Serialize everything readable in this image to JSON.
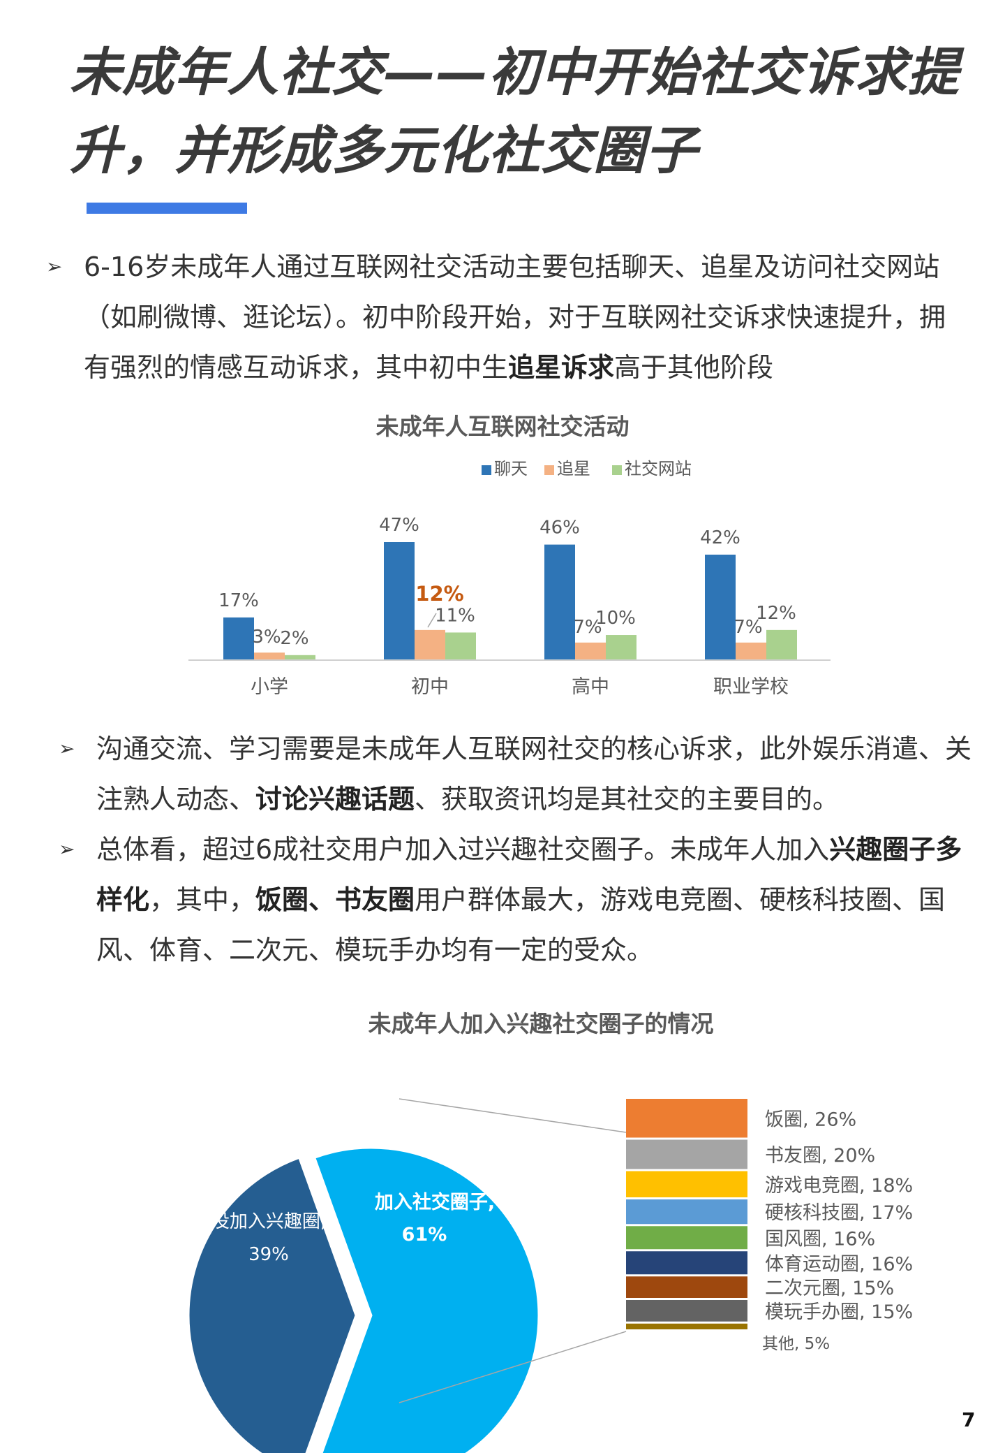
{
  "page": {
    "title_line1": "未成年人社交——初中开始社交诉求提",
    "title_line2": "升，并形成多元化社交圈子",
    "page_number": "7",
    "accent_color": "#3e7ae4"
  },
  "bullets": [
    {
      "marker": "➢",
      "text_before": "6-16岁未成年人通过互联网社交活动主要包括聊天、追星及访问社交网站（如刷微博、逛论坛）。初中阶段开始，对于互联网社交诉求快速提升，拥有强烈的情感互动诉求，其中初中生",
      "bold1": "追星诉求",
      "text_after": "高于其他阶段"
    },
    {
      "marker": "➢",
      "text_before": "沟通交流、学习需要是未成年人互联网社交的核心诉求，此外娱乐消遣、关注熟人动态、",
      "bold1": "讨论兴趣话题",
      "text_after": "、获取资讯均是其社交的主要目的。"
    },
    {
      "marker": "➢",
      "text_before": "总体看，超过6成社交用户加入过兴趣社交圈子。未成年人加入",
      "bold1": "兴趣圈子多样化",
      "text_mid": "，其中，",
      "bold2": "饭圈、书友圈",
      "text_after": "用户群体最大，游戏电竞圈、硬核科技圈、国风、体育、二次元、模玩手办均有一定的受众。"
    }
  ],
  "chart_data": [
    {
      "type": "bar",
      "title": "未成年人互联网社交活动",
      "categories": [
        "小学",
        "初中",
        "高中",
        "职业学校"
      ],
      "series": [
        {
          "name": "聊天",
          "color": "#2e75b6",
          "values": [
            17,
            47,
            46,
            42
          ]
        },
        {
          "name": "追星",
          "color": "#f4b183",
          "values": [
            3,
            12,
            7,
            7
          ]
        },
        {
          "name": "社交网站",
          "color": "#a9d18e",
          "values": [
            2,
            11,
            10,
            12
          ]
        }
      ],
      "value_labels": [
        [
          "17%",
          "47%",
          "46%",
          "42%"
        ],
        [
          "3%",
          "12%",
          "7%",
          "7%"
        ],
        [
          "2%",
          "11%",
          "10%",
          "12%"
        ]
      ],
      "highlight": {
        "series": 1,
        "category": 1,
        "color": "#c55a11"
      },
      "legend_position": "top",
      "ylim": [
        0,
        50
      ],
      "grid": false
    },
    {
      "type": "pie",
      "title": "未成年人加入兴趣社交圈子的情况",
      "slices": [
        {
          "label": "加入社交圈子",
          "value": 61,
          "value_label": "61%",
          "color": "#00b0f0"
        },
        {
          "label": "没加入兴趣圈",
          "value": 39,
          "value_label": "39%",
          "color": "#255e91"
        }
      ],
      "breakdown": {
        "type": "stacked-bar",
        "items": [
          {
            "label": "饭圈, 26%",
            "value": 26,
            "color": "#ed7d31"
          },
          {
            "label": "书友圈, 20%",
            "value": 20,
            "color": "#a5a5a5"
          },
          {
            "label": "游戏电竞圈, 18%",
            "value": 18,
            "color": "#ffc000"
          },
          {
            "label": "硬核科技圈, 17%",
            "value": 17,
            "color": "#5b9bd5"
          },
          {
            "label": "国风圈, 16%",
            "value": 16,
            "color": "#70ad47"
          },
          {
            "label": "体育运动圈, 16%",
            "value": 16,
            "color": "#264478"
          },
          {
            "label": "二次元圈, 15%",
            "value": 15,
            "color": "#9e480e"
          },
          {
            "label": "模玩手办圈, 15%",
            "value": 15,
            "color": "#636363"
          },
          {
            "label": "其他, 5%",
            "value": 5,
            "color": "#997300"
          }
        ]
      }
    }
  ]
}
